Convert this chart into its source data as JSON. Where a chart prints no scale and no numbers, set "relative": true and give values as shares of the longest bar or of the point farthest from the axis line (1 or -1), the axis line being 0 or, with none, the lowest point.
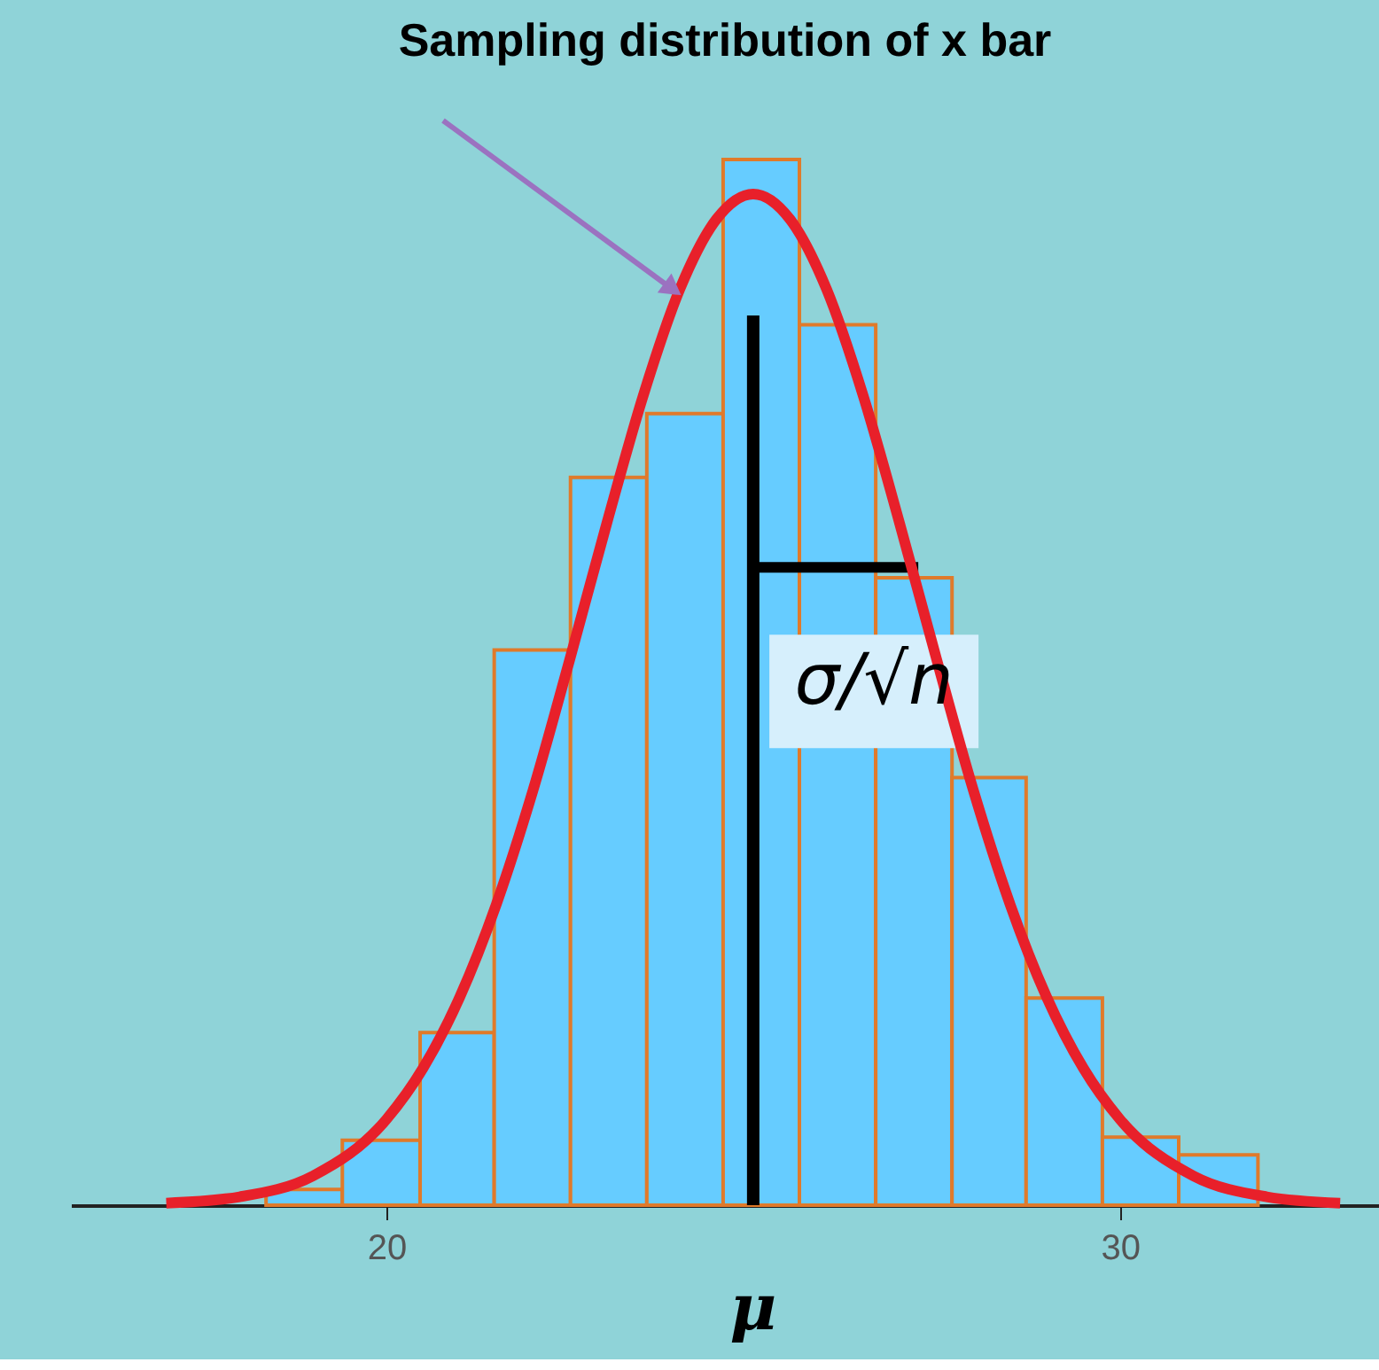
{
  "chart_data": {
    "type": "histogram",
    "title": "Sampling distribution of x bar",
    "relative": true,
    "bins": [
      18.36,
      19.4,
      20.46,
      21.47,
      22.51,
      23.55,
      24.59,
      25.63,
      26.67,
      27.71,
      28.72,
      29.76,
      30.8,
      31.88
    ],
    "values": [
      0.015,
      0.062,
      0.165,
      0.531,
      0.696,
      0.757,
      1,
      0.842,
      0.6,
      0.409,
      0.198,
      0.065,
      0.048
    ],
    "color": "#66ccff",
    "series": [
      {
        "type": "line",
        "color": "#e8202a",
        "x": [
          17,
          18,
          19,
          20,
          20.5,
          21,
          21.5,
          22,
          22.5,
          23,
          23.5,
          24,
          24.5,
          25,
          25.5,
          26,
          26.5,
          27,
          27.5,
          28,
          28.5,
          29,
          29.5,
          30,
          31,
          32,
          33
        ],
        "values": [
          0.002,
          0.008,
          0.028,
          0.082,
          0.131,
          0.199,
          0.288,
          0.397,
          0.522,
          0.651,
          0.774,
          0.876,
          0.943,
          0.967,
          0.943,
          0.876,
          0.774,
          0.651,
          0.522,
          0.397,
          0.288,
          0.199,
          0.131,
          0.082,
          0.028,
          0.008,
          0.002
        ]
      }
    ],
    "xlim": [
      15.7,
      33.53
    ],
    "xticks": [
      20,
      30
    ],
    "grid": false,
    "ref_lines": [
      {
        "axis": "x",
        "value": 25,
        "label": "μ",
        "color": "#000000"
      }
    ],
    "annotations": [
      {
        "text": "σ/√n",
        "x": 27.25,
        "y": 0.61
      }
    ]
  }
}
